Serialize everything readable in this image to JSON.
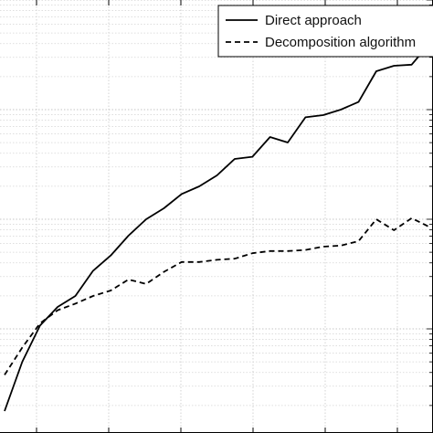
{
  "chart_data": {
    "type": "line",
    "title": "",
    "xlabel": "",
    "ylabel": "",
    "x": [
      0,
      1,
      2,
      3,
      4,
      5,
      6,
      7,
      8,
      9,
      10,
      11,
      12,
      13,
      14,
      15,
      16,
      17,
      18,
      19,
      20,
      21,
      22,
      23,
      24
    ],
    "xlim": [
      0,
      24
    ],
    "ylim": [
      -0.2,
      3.75
    ],
    "yscale": "log-like",
    "grid": true,
    "legend_position": "top-right",
    "series": [
      {
        "name": "Direct approach",
        "style": "solid",
        "color": "#000000",
        "values": [
          0.0,
          0.45,
          0.78,
          0.95,
          1.05,
          1.28,
          1.42,
          1.6,
          1.75,
          1.85,
          1.98,
          2.05,
          2.15,
          2.3,
          2.32,
          2.5,
          2.45,
          2.68,
          2.7,
          2.75,
          2.82,
          3.1,
          3.15,
          3.16,
          3.35
        ]
      },
      {
        "name": "Decomposition algorithm",
        "style": "dashed",
        "color": "#000000",
        "values": [
          0.33,
          0.58,
          0.8,
          0.92,
          0.98,
          1.05,
          1.1,
          1.2,
          1.16,
          1.27,
          1.36,
          1.36,
          1.38,
          1.39,
          1.44,
          1.46,
          1.46,
          1.47,
          1.5,
          1.51,
          1.55,
          1.75,
          1.65,
          1.76,
          1.68
        ]
      }
    ]
  }
}
